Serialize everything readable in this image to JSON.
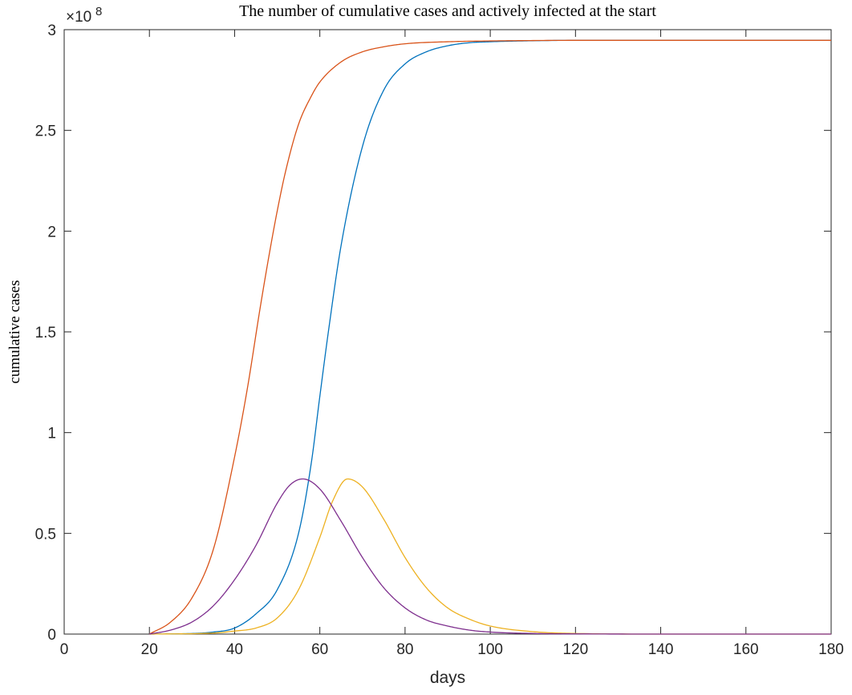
{
  "chart_data": {
    "type": "line",
    "title": "The number of cumulative cases and actively infected at the start",
    "xlabel": "days",
    "ylabel": "cumulative cases",
    "y_exponent_label": "×10",
    "y_exponent_power": "8",
    "xlim": [
      0,
      180
    ],
    "ylim": [
      0,
      3
    ],
    "x_ticks": [
      0,
      20,
      40,
      60,
      80,
      100,
      120,
      140,
      160,
      180
    ],
    "x_tick_labels": [
      "0",
      "20",
      "40",
      "60",
      "80",
      "100",
      "120",
      "140",
      "160",
      "180"
    ],
    "y_ticks": [
      0,
      0.5,
      1,
      1.5,
      2,
      2.5,
      3
    ],
    "y_tick_labels": [
      "0",
      "0.5",
      "1",
      "1.5",
      "2",
      "2.5",
      "3"
    ],
    "grid": false,
    "series": [
      {
        "color": "#0072BD",
        "x": [
          20,
          30,
          35,
          40,
          45,
          50,
          55,
          58,
          60,
          62,
          65,
          70,
          75,
          80,
          85,
          90,
          95,
          100,
          110,
          120,
          140,
          160,
          180
        ],
        "y": [
          0,
          0.003,
          0.01,
          0.03,
          0.1,
          0.22,
          0.5,
          0.85,
          1.18,
          1.5,
          1.93,
          2.42,
          2.7,
          2.83,
          2.89,
          2.92,
          2.935,
          2.94,
          2.945,
          2.947,
          2.947,
          2.947,
          2.947
        ]
      },
      {
        "color": "#D95319",
        "x": [
          20,
          25,
          30,
          35,
          40,
          43,
          46,
          48,
          50,
          52,
          55,
          58,
          60,
          65,
          70,
          75,
          80,
          90,
          100,
          110,
          120,
          140,
          160,
          180
        ],
        "y": [
          0,
          0.06,
          0.18,
          0.42,
          0.88,
          1.22,
          1.62,
          1.87,
          2.1,
          2.3,
          2.53,
          2.67,
          2.74,
          2.84,
          2.89,
          2.915,
          2.93,
          2.94,
          2.944,
          2.946,
          2.947,
          2.947,
          2.947,
          2.947
        ]
      },
      {
        "color": "#EDB120",
        "x": [
          20,
          35,
          40,
          45,
          50,
          55,
          60,
          63,
          66.5,
          70,
          75,
          80,
          85,
          90,
          95,
          100,
          110,
          120,
          140,
          160,
          180
        ],
        "y": [
          0,
          0.005,
          0.015,
          0.03,
          0.08,
          0.22,
          0.48,
          0.66,
          0.77,
          0.73,
          0.57,
          0.38,
          0.23,
          0.13,
          0.075,
          0.04,
          0.012,
          0.003,
          0,
          0,
          0
        ]
      },
      {
        "color": "#7E2F8E",
        "x": [
          20,
          25,
          30,
          35,
          40,
          45,
          50,
          53,
          56,
          60,
          65,
          70,
          75,
          80,
          85,
          90,
          95,
          100,
          110,
          120,
          140,
          160,
          180
        ],
        "y": [
          0,
          0.02,
          0.06,
          0.14,
          0.27,
          0.44,
          0.65,
          0.74,
          0.77,
          0.72,
          0.56,
          0.38,
          0.23,
          0.13,
          0.07,
          0.04,
          0.02,
          0.01,
          0.003,
          0.001,
          0,
          0,
          0
        ]
      }
    ]
  }
}
